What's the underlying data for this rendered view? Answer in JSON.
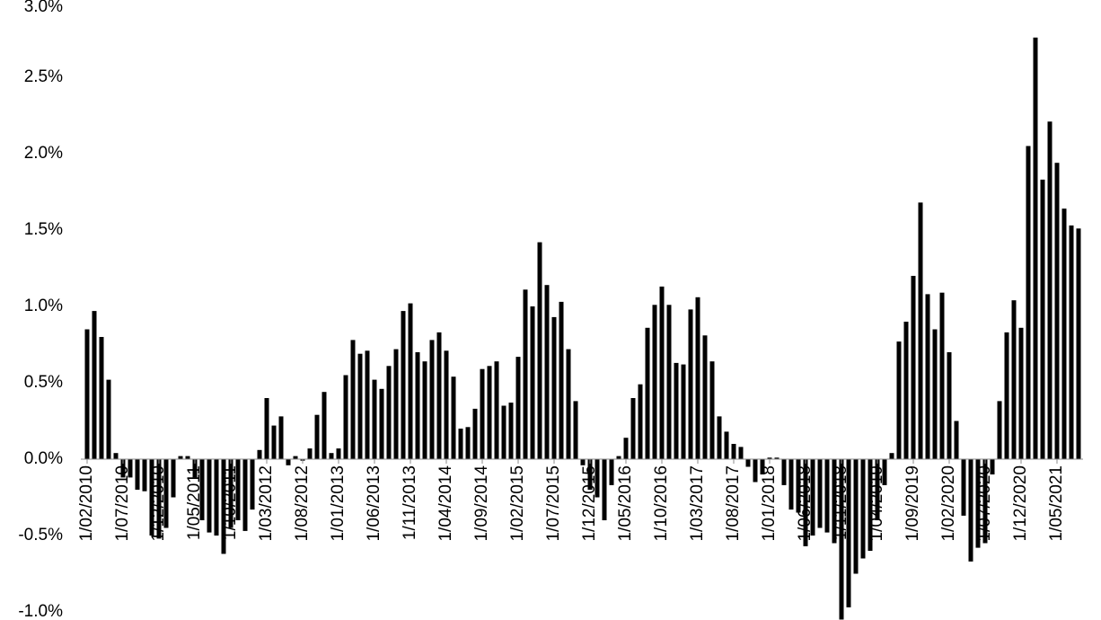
{
  "chart_data": {
    "type": "bar",
    "categories": [
      "1/02/2010",
      null,
      null,
      null,
      null,
      "1/07/2010",
      null,
      null,
      null,
      null,
      "1/12/2010",
      null,
      null,
      null,
      null,
      "1/05/2011",
      null,
      null,
      null,
      null,
      "1/10/2011",
      null,
      null,
      null,
      null,
      "1/03/2012",
      null,
      null,
      null,
      null,
      "1/08/2012",
      null,
      null,
      null,
      null,
      "1/01/2013",
      null,
      null,
      null,
      null,
      "1/06/2013",
      null,
      null,
      null,
      null,
      "1/11/2013",
      null,
      null,
      null,
      null,
      "1/04/2014",
      null,
      null,
      null,
      null,
      "1/09/2014",
      null,
      null,
      null,
      null,
      "1/02/2015",
      null,
      null,
      null,
      null,
      "1/07/2015",
      null,
      null,
      null,
      null,
      "1/12/2015",
      null,
      null,
      null,
      null,
      "1/05/2016",
      null,
      null,
      null,
      null,
      "1/10/2016",
      null,
      null,
      null,
      null,
      "1/03/2017",
      null,
      null,
      null,
      null,
      "1/08/2017",
      null,
      null,
      null,
      null,
      "1/01/2018",
      null,
      null,
      null,
      null,
      "1/06/2018",
      null,
      null,
      null,
      null,
      "1/11/2018",
      null,
      null,
      null,
      null,
      "1/04/2019",
      null,
      null,
      null,
      null,
      "1/09/2019",
      null,
      null,
      null,
      null,
      "1/02/2020",
      null,
      null,
      null,
      null,
      "1/07/2020",
      null,
      null,
      null,
      null,
      "1/12/2020",
      null,
      null,
      null,
      null,
      "1/05/2021",
      null,
      null,
      null
    ],
    "values": [
      0.85,
      0.97,
      0.8,
      0.52,
      0.04,
      -0.12,
      -0.12,
      -0.2,
      -0.21,
      -0.5,
      -0.52,
      -0.45,
      -0.25,
      0.02,
      0.02,
      -0.12,
      -0.4,
      -0.48,
      -0.5,
      -0.62,
      -0.45,
      -0.4,
      -0.47,
      -0.33,
      0.06,
      0.4,
      0.22,
      0.28,
      -0.04,
      0.02,
      -0.01,
      0.07,
      0.29,
      0.44,
      0.04,
      0.07,
      0.55,
      0.78,
      0.69,
      0.71,
      0.52,
      0.46,
      0.61,
      0.72,
      0.97,
      1.02,
      0.7,
      0.64,
      0.78,
      0.83,
      0.71,
      0.54,
      0.2,
      0.21,
      0.33,
      0.59,
      0.61,
      0.64,
      0.35,
      0.37,
      0.67,
      1.11,
      1.0,
      1.42,
      1.14,
      0.93,
      1.03,
      0.72,
      0.38,
      -0.04,
      -0.2,
      -0.25,
      -0.4,
      -0.17,
      0.02,
      0.14,
      0.4,
      0.49,
      0.86,
      1.01,
      1.13,
      1.01,
      0.63,
      0.62,
      0.98,
      1.06,
      0.81,
      0.64,
      0.28,
      0.18,
      0.1,
      0.08,
      -0.05,
      -0.15,
      -0.1,
      0.01,
      0.01,
      -0.17,
      -0.33,
      -0.35,
      -0.57,
      -0.5,
      -0.45,
      -0.48,
      -0.55,
      -1.05,
      -0.97,
      -0.75,
      -0.65,
      -0.6,
      -0.4,
      -0.17,
      0.04,
      0.77,
      0.9,
      1.2,
      1.68,
      1.08,
      0.85,
      1.09,
      0.7,
      0.25,
      -0.37,
      -0.67,
      -0.58,
      -0.55,
      -0.1,
      0.38,
      0.83,
      1.04,
      0.86,
      2.05,
      2.76,
      1.83,
      2.21,
      1.94,
      1.64,
      1.53,
      1.51
    ],
    "color": "#000000",
    "ylim": [
      -1,
      3
    ],
    "yticks": [
      {
        "value": -1,
        "label": "-1.0%"
      },
      {
        "value": -0.5,
        "label": "-0.5%"
      },
      {
        "value": 0,
        "label": "0.0%"
      },
      {
        "value": 0.5,
        "label": "0.5%"
      },
      {
        "value": 1,
        "label": "1.0%"
      },
      {
        "value": 1.5,
        "label": "1.5%"
      },
      {
        "value": 2,
        "label": "2.0%"
      },
      {
        "value": 2.5,
        "label": "2.5%"
      },
      {
        "value": 3,
        "label": "3.0%"
      }
    ],
    "grid": false
  }
}
